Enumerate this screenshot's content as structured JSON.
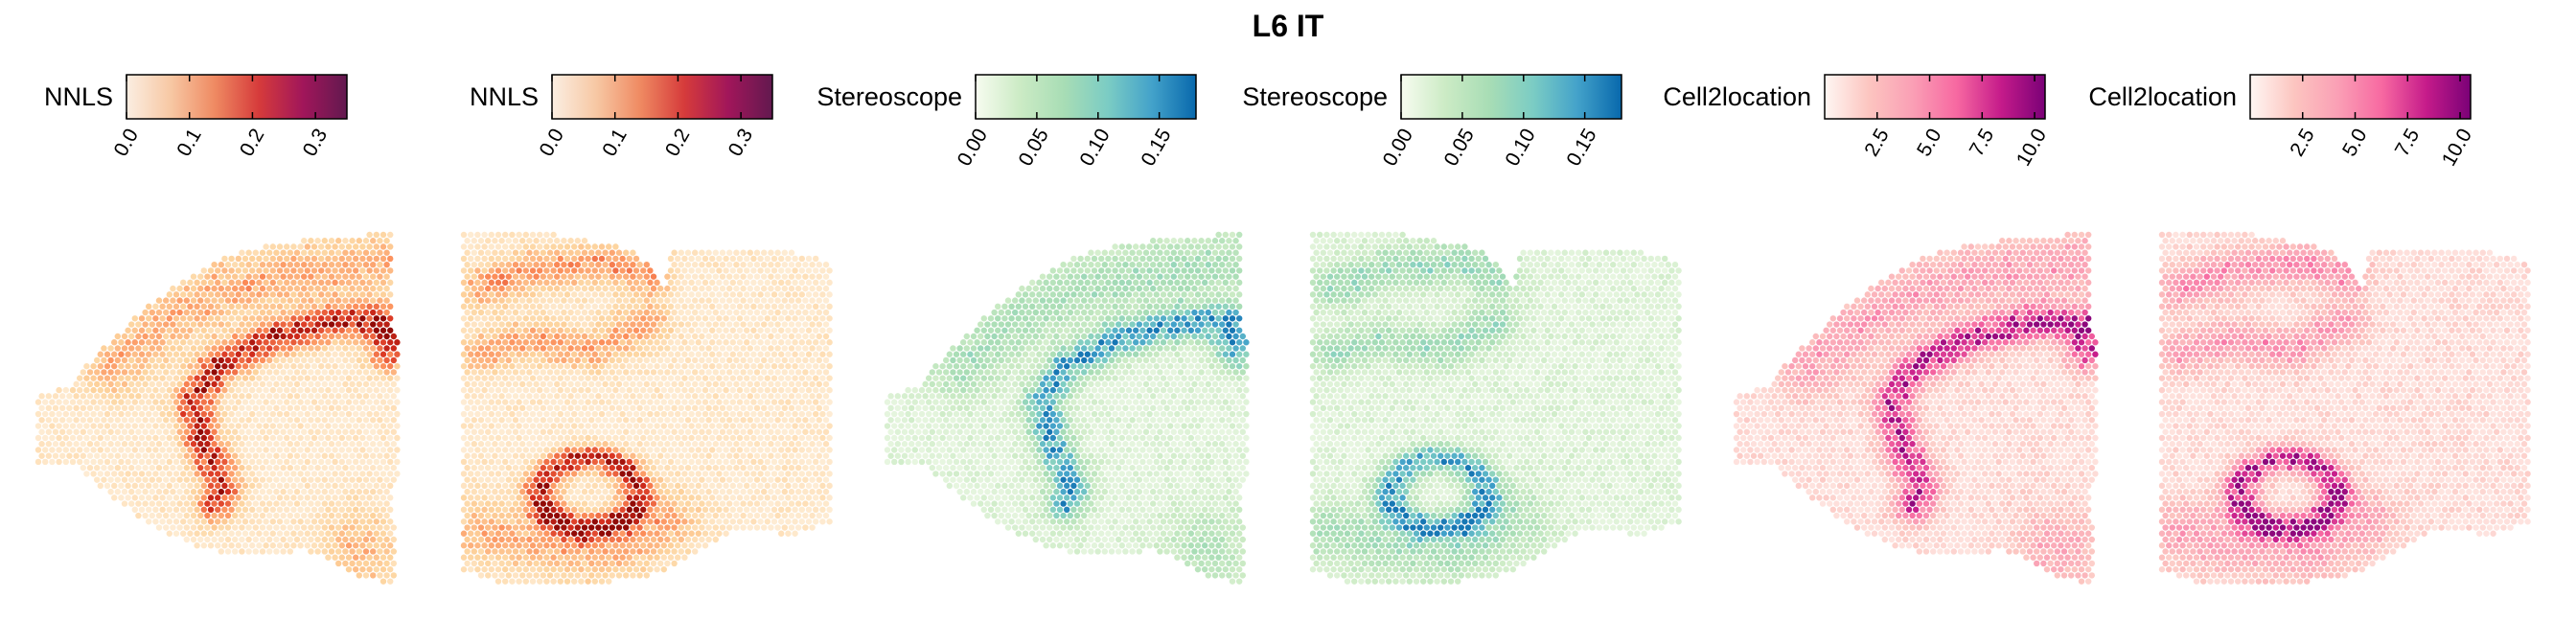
{
  "figure_title": "L6 IT",
  "colormaps": {
    "OrRd_like": [
      "#fff7ec",
      "#fdd49e",
      "#fc8d59",
      "#d7301f",
      "#7f0000"
    ],
    "NNLS_bar": [
      "#fbeee2",
      "#f7c8a4",
      "#ef8a62",
      "#d63b3b",
      "#a1165a",
      "#62194f"
    ],
    "GnBu": [
      "#f7fcf0",
      "#ccebc5",
      "#a8ddb5",
      "#7bccc4",
      "#43a2ca",
      "#0868ac"
    ],
    "RdPu": [
      "#fff7f3",
      "#fcc5c0",
      "#fa9fb5",
      "#f768a1",
      "#c51b8a",
      "#7a0177"
    ]
  },
  "chart_data": [
    {
      "type": "heatmap",
      "method": "NNLS",
      "colorbar_label": "NNLS",
      "cmap": "NNLS_bar",
      "spot_cmap": "OrRd_like",
      "range": [
        0,
        0.35
      ],
      "ticks": [
        0,
        0.1,
        0.2,
        0.3
      ],
      "tick_labels": [
        "0.0",
        "0.1",
        "0.2",
        "0.3"
      ],
      "section": "sagittal_a",
      "hotspot_pattern": "deep_layer"
    },
    {
      "type": "heatmap",
      "method": "NNLS",
      "colorbar_label": "NNLS",
      "cmap": "NNLS_bar",
      "spot_cmap": "OrRd_like",
      "range": [
        0,
        0.35
      ],
      "ticks": [
        0,
        0.1,
        0.2,
        0.3
      ],
      "tick_labels": [
        "0.0",
        "0.1",
        "0.2",
        "0.3"
      ],
      "section": "sagittal_b",
      "hotspot_pattern": "hippocampal_loop"
    },
    {
      "type": "heatmap",
      "method": "Stereoscope",
      "colorbar_label": "Stereoscope",
      "cmap": "GnBu",
      "spot_cmap": "GnBu",
      "range": [
        0,
        0.18
      ],
      "ticks": [
        0,
        0.05,
        0.1,
        0.15
      ],
      "tick_labels": [
        "0.00",
        "0.05",
        "0.10",
        "0.15"
      ],
      "section": "sagittal_a",
      "hotspot_pattern": "deep_layer"
    },
    {
      "type": "heatmap",
      "method": "Stereoscope",
      "colorbar_label": "Stereoscope",
      "cmap": "GnBu",
      "spot_cmap": "GnBu",
      "range": [
        0,
        0.18
      ],
      "ticks": [
        0,
        0.05,
        0.1,
        0.15
      ],
      "tick_labels": [
        "0.00",
        "0.05",
        "0.10",
        "0.15"
      ],
      "section": "sagittal_b",
      "hotspot_pattern": "hippocampal_loop"
    },
    {
      "type": "heatmap",
      "method": "Cell2location",
      "colorbar_label": "Cell2location",
      "cmap": "RdPu",
      "spot_cmap": "RdPu",
      "range": [
        0,
        10.5
      ],
      "ticks": [
        2.5,
        5,
        7.5,
        10
      ],
      "tick_labels": [
        "2.5",
        "5.0",
        "7.5",
        "10.0"
      ],
      "section": "sagittal_a",
      "hotspot_pattern": "deep_layer"
    },
    {
      "type": "heatmap",
      "method": "Cell2location",
      "colorbar_label": "Cell2location",
      "cmap": "RdPu",
      "spot_cmap": "RdPu",
      "range": [
        0,
        10.5
      ],
      "ticks": [
        2.5,
        5,
        7.5,
        10
      ],
      "tick_labels": [
        "2.5",
        "5.0",
        "7.5",
        "10.0"
      ],
      "section": "sagittal_b",
      "hotspot_pattern": "hippocampal_loop"
    }
  ]
}
